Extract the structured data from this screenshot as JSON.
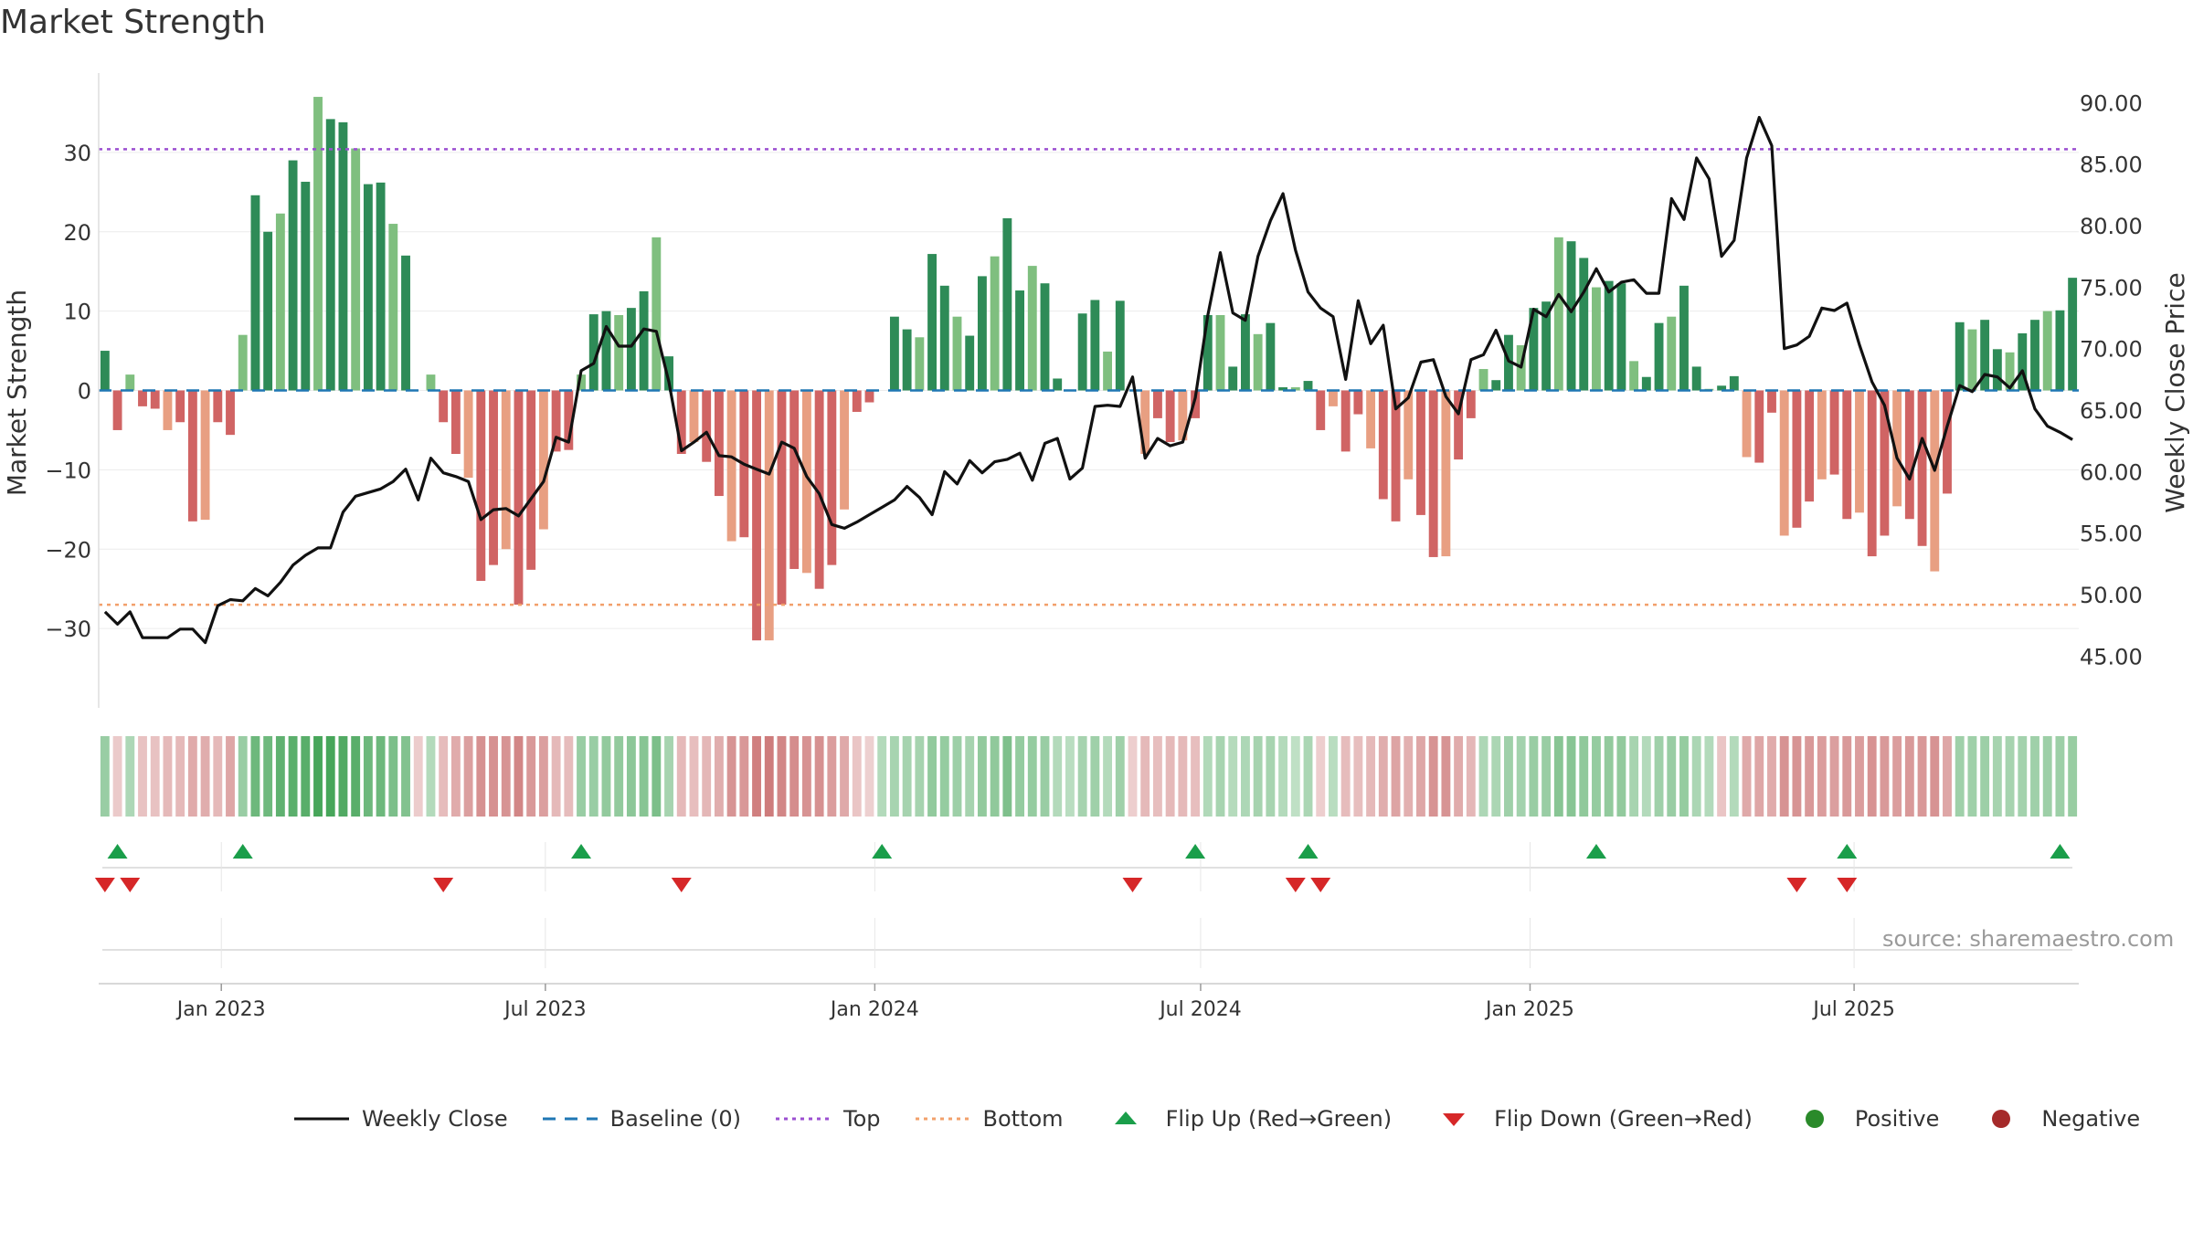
{
  "title": "Market Strength",
  "source": "source: sharemaestro.com",
  "colors": {
    "pos_dark": "#2e8b57",
    "pos_light": "#7fbf7f",
    "neg_dark": "#d06464",
    "neg_light": "#e89f82",
    "price": "#111111",
    "baseline": "#1f77b4",
    "top": "#9b4fd1",
    "bottom": "#f2a06b",
    "flip_up": "#1a9e4a",
    "flip_down": "#d62728",
    "positive": "#2a8a2a",
    "negative": "#a52a2a"
  },
  "legend": [
    {
      "label": "Weekly Close",
      "icon": "line-solid"
    },
    {
      "label": "Baseline (0)",
      "icon": "line-dashed"
    },
    {
      "label": "Top",
      "icon": "line-dotted-purple"
    },
    {
      "label": "Bottom",
      "icon": "line-dotted-orange"
    },
    {
      "label": "Flip Up (Red→Green)",
      "icon": "triangle-up"
    },
    {
      "label": "Flip Down (Green→Red)",
      "icon": "triangle-down"
    },
    {
      "label": "Positive",
      "icon": "dot-green"
    },
    {
      "label": "Negative",
      "icon": "dot-red"
    }
  ],
  "chart_data": {
    "type": "bar",
    "ylabel": "Market Strength",
    "ylabel_right": "Weekly Close Price",
    "ylim": [
      -40,
      40
    ],
    "yticks": [
      30,
      20,
      10,
      0,
      -10,
      -20,
      -30
    ],
    "ytick_labels": [
      "30",
      "20",
      "10",
      "0",
      "−10",
      "−20",
      "−30"
    ],
    "ylim_right": [
      40.8,
      92.4
    ],
    "yticks_right": [
      "90.00",
      "85.00",
      "80.00",
      "75.00",
      "70.00",
      "65.00",
      "60.00",
      "55.00",
      "50.00",
      "45.00"
    ],
    "x_dates": {
      "first": "2022-10-28",
      "step_days": 7
    },
    "xticks": [
      {
        "date": "2023-01-01",
        "label": "Jan 2023"
      },
      {
        "date": "2023-07-01",
        "label": "Jul 2023"
      },
      {
        "date": "2024-01-01",
        "label": "Jan 2024"
      },
      {
        "date": "2024-07-01",
        "label": "Jul 2024"
      },
      {
        "date": "2025-01-01",
        "label": "Jan 2025"
      },
      {
        "date": "2025-07-01",
        "label": "Jul 2025"
      }
    ],
    "top_level": 30.4,
    "bottom_level": -27,
    "baseline": 0,
    "strength": [
      5,
      -5,
      2,
      -2,
      -2.3,
      -5,
      -4,
      -16.5,
      -16.3,
      -4,
      -5.6,
      7,
      24.6,
      20,
      22.3,
      29,
      26.3,
      37,
      34.2,
      33.8,
      30.5,
      26,
      26.2,
      21,
      17,
      0,
      2,
      -4,
      -8,
      -11,
      -24,
      -22,
      -20,
      -27,
      -22.6,
      -17.5,
      -7.7,
      -7.5,
      2,
      9.6,
      10,
      9.5,
      10.4,
      12.5,
      19.3,
      4.3,
      -8,
      -6.5,
      -9,
      -13.3,
      -19,
      -18.5,
      -31.5,
      -31.5,
      -27,
      -22.5,
      -23,
      -25,
      -22,
      -15,
      -2.7,
      -1.5,
      0,
      9.3,
      7.7,
      6.7,
      17.2,
      13.2,
      9.3,
      6.9,
      14.4,
      16.9,
      21.7,
      12.6,
      15.7,
      13.5,
      1.5,
      0,
      9.7,
      11.4,
      4.9,
      11.3,
      0,
      -8,
      -3.5,
      -6.5,
      -6.3,
      -3.5,
      9.5,
      9.5,
      3,
      9.6,
      7.1,
      8.5,
      0.4,
      0.4,
      1.2,
      -5,
      -2,
      -7.7,
      -3,
      -7.3,
      -13.7,
      -16.5,
      -11.2,
      -15.7,
      -21,
      -20.9,
      -8.7,
      -3.5,
      2.7,
      1.3,
      7,
      5.7,
      10.4,
      11.2,
      19.3,
      18.8,
      16.7,
      13,
      13.8,
      13.5,
      3.7,
      1.7,
      8.5,
      9.3,
      13.2,
      3,
      0.2,
      0.6,
      1.8,
      -8.4,
      -9.1,
      -2.8,
      -18.3,
      -17.3,
      -14,
      -11.2,
      -10.6,
      -16.2,
      -15.4,
      -20.9,
      -18.3,
      -14.6,
      -16.2,
      -19.6,
      -22.8,
      -13,
      8.6,
      7.7,
      8.9,
      5.2,
      4.8,
      7.2,
      8.9,
      10,
      10.1,
      14.2
    ],
    "close": [
      48.6,
      47.6,
      48.6,
      46.5,
      46.5,
      46.5,
      47.2,
      47.2,
      46.1,
      49.1,
      49.6,
      49.5,
      50.5,
      49.9,
      51.0,
      52.4,
      53.2,
      53.8,
      53.8,
      56.7,
      58.0,
      58.3,
      58.6,
      59.2,
      60.2,
      57.7,
      61.1,
      59.9,
      59.6,
      59.2,
      56.1,
      56.9,
      57.0,
      56.4,
      57.8,
      59.2,
      62.8,
      62.4,
      68.2,
      68.8,
      71.8,
      70.2,
      70.2,
      71.6,
      71.4,
      67.3,
      61.7,
      62.4,
      63.2,
      61.3,
      61.2,
      60.6,
      60.2,
      59.8,
      62.4,
      61.9,
      59.6,
      58.2,
      55.7,
      55.4,
      55.9,
      56.5,
      57.1,
      57.7,
      58.8,
      57.9,
      56.5,
      60.0,
      59.0,
      60.9,
      59.9,
      60.8,
      61.0,
      61.5,
      59.3,
      62.3,
      62.7,
      59.4,
      60.3,
      65.3,
      65.4,
      65.3,
      67.7,
      61.1,
      62.7,
      62.1,
      62.4,
      66.0,
      72.7,
      77.8,
      72.9,
      72.3,
      77.5,
      80.4,
      82.6,
      78.0,
      74.6,
      73.3,
      72.6,
      67.5,
      73.9,
      70.4,
      71.9,
      65.1,
      66.0,
      68.9,
      69.1,
      66.1,
      64.7,
      69.1,
      69.5,
      71.5,
      69.0,
      68.5,
      73.2,
      72.6,
      74.4,
      73.0,
      74.6,
      76.5,
      74.6,
      75.4,
      75.6,
      74.5,
      74.5,
      82.2,
      80.5,
      85.5,
      83.8,
      77.5,
      78.8,
      85.5,
      88.8,
      86.5,
      70.0,
      70.3,
      71.0,
      73.3,
      73.1,
      73.7,
      70.3,
      67.3,
      65.4,
      61.1,
      59.4,
      62.7,
      60.1,
      63.7,
      67.0,
      66.5,
      67.9,
      67.7,
      66.8,
      68.2,
      65.1,
      63.7,
      63.2,
      62.6
    ],
    "flip_up": [
      1,
      11,
      38,
      62,
      87,
      96,
      119,
      139,
      156
    ],
    "flip_down": [
      0,
      2,
      27,
      46,
      82,
      95,
      97,
      135,
      139
    ],
    "regime_band": [
      0.39,
      -0.14,
      0.25,
      -0.21,
      -0.22,
      -0.29,
      -0.28,
      -0.4,
      -0.39,
      -0.29,
      -0.44,
      0.39,
      0.71,
      0.7,
      0.82,
      0.84,
      0.86,
      0.98,
      0.98,
      0.92,
      0.86,
      0.72,
      0.72,
      0.6,
      0.55,
      -0.13,
      0.2,
      -0.25,
      -0.4,
      -0.5,
      -0.62,
      -0.62,
      -0.58,
      -0.7,
      -0.55,
      -0.5,
      -0.28,
      -0.25,
      0.38,
      0.38,
      0.45,
      0.44,
      0.49,
      0.52,
      0.6,
      0.3,
      -0.28,
      -0.24,
      -0.3,
      -0.38,
      -0.58,
      -0.56,
      -0.76,
      -0.78,
      -0.7,
      -0.64,
      -0.6,
      -0.62,
      -0.52,
      -0.42,
      -0.18,
      -0.1,
      0.2,
      0.28,
      0.3,
      0.3,
      0.45,
      0.42,
      0.36,
      0.3,
      0.44,
      0.46,
      0.58,
      0.42,
      0.42,
      0.38,
      0.2,
      0.16,
      0.3,
      0.35,
      0.2,
      0.34,
      -0.12,
      -0.28,
      -0.24,
      -0.28,
      -0.28,
      -0.24,
      0.22,
      0.28,
      0.18,
      0.24,
      0.3,
      0.28,
      0.2,
      0.12,
      0.26,
      -0.12,
      0.16,
      -0.26,
      -0.24,
      -0.28,
      -0.38,
      -0.46,
      -0.36,
      -0.44,
      -0.6,
      -0.58,
      -0.4,
      -0.3,
      0.24,
      0.26,
      0.34,
      0.32,
      0.38,
      0.38,
      0.52,
      0.52,
      0.46,
      0.42,
      0.44,
      0.44,
      0.28,
      0.2,
      0.34,
      0.38,
      0.42,
      0.26,
      0.2,
      -0.18,
      0.2,
      -0.42,
      -0.44,
      -0.4,
      -0.6,
      -0.58,
      -0.55,
      -0.52,
      -0.5,
      -0.55,
      -0.52,
      -0.6,
      -0.55,
      -0.52,
      -0.55,
      -0.56,
      -0.6,
      -0.44,
      0.34,
      0.34,
      0.36,
      0.3,
      0.3,
      0.32,
      0.34,
      0.36,
      0.36,
      0.4
    ]
  }
}
